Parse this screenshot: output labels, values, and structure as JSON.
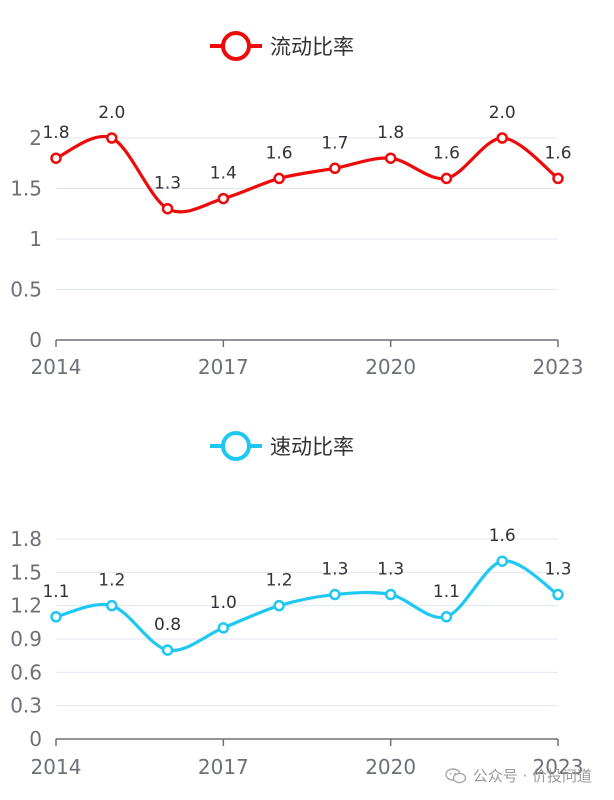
{
  "chart_data": [
    {
      "type": "line",
      "smooth": true,
      "legend": "流动比率",
      "color": "#ee0a0a",
      "x": [
        "2014",
        "2015",
        "2016",
        "2017",
        "2018",
        "2019",
        "2020",
        "2021",
        "2022",
        "2023"
      ],
      "values": [
        1.8,
        2.0,
        1.3,
        1.4,
        1.6,
        1.7,
        1.8,
        1.6,
        2.0,
        1.6
      ],
      "data_labels": [
        "1.8",
        "2.0",
        "1.3",
        "1.4",
        "1.6",
        "1.7",
        "1.8",
        "1.6",
        "2.0",
        "1.6"
      ],
      "x_tick_labels": [
        "2014",
        "2017",
        "2020",
        "2023"
      ],
      "y_ticks": [
        0,
        0.5,
        1,
        1.5,
        2
      ],
      "y_tick_labels": [
        "0",
        "0.5",
        "1",
        "1.5",
        "2"
      ],
      "ylim": [
        0,
        2
      ]
    },
    {
      "type": "line",
      "smooth": true,
      "legend": "速动比率",
      "color": "#1ec8f2",
      "x": [
        "2014",
        "2015",
        "2016",
        "2017",
        "2018",
        "2019",
        "2020",
        "2021",
        "2022",
        "2023"
      ],
      "values": [
        1.1,
        1.2,
        0.8,
        1.0,
        1.2,
        1.3,
        1.3,
        1.1,
        1.6,
        1.3
      ],
      "data_labels": [
        "1.1",
        "1.2",
        "0.8",
        "1.0",
        "1.2",
        "1.3",
        "1.3",
        "1.1",
        "1.6",
        "1.3"
      ],
      "x_tick_labels": [
        "2014",
        "2017",
        "2020",
        "2023"
      ],
      "y_ticks": [
        0,
        0.3,
        0.6,
        0.9,
        1.2,
        1.5,
        1.8
      ],
      "y_tick_labels": [
        "0",
        "0.3",
        "0.6",
        "0.9",
        "1.2",
        "1.5",
        "1.8"
      ],
      "ylim": [
        0,
        1.8
      ]
    }
  ],
  "watermark": {
    "text": "公众号 · 价投问道",
    "icon": "wechat-icon"
  }
}
